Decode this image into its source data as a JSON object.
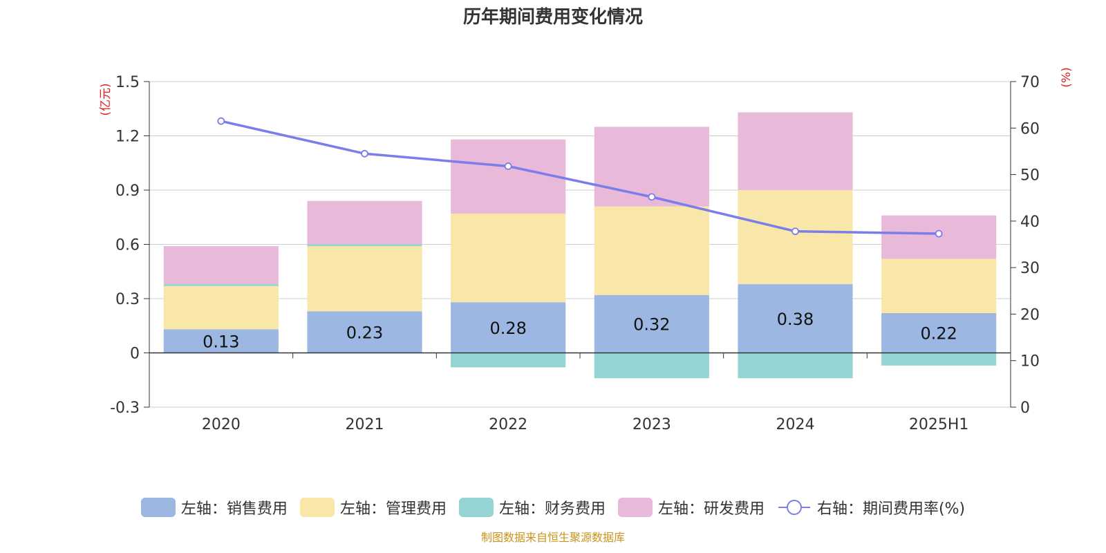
{
  "chart_data": {
    "type": "bar",
    "title": "历年期间费用变化情况",
    "categories": [
      "2020",
      "2021",
      "2022",
      "2023",
      "2024",
      "2025H1"
    ],
    "left_axis": {
      "unit_label": "(亿元)",
      "ylim": [
        -0.3,
        1.5
      ],
      "ticks": [
        "-0.3",
        "0",
        "0.3",
        "0.6",
        "0.9",
        "1.2",
        "1.5"
      ]
    },
    "right_axis": {
      "unit_label": "(%)",
      "ylim": [
        0,
        70
      ],
      "ticks": [
        "0",
        "10",
        "20",
        "30",
        "40",
        "50",
        "60",
        "70"
      ]
    },
    "series": [
      {
        "name": "左轴：销售费用",
        "type": "bar",
        "stack": true,
        "color": "#9bb7e2",
        "values": [
          0.13,
          0.23,
          0.28,
          0.32,
          0.38,
          0.22
        ],
        "labels": [
          "0.13",
          "0.23",
          "0.28",
          "0.32",
          "0.38",
          "0.22"
        ]
      },
      {
        "name": "左轴：管理费用",
        "type": "bar",
        "stack": true,
        "color": "#f8e7a8",
        "values": [
          0.24,
          0.36,
          0.49,
          0.49,
          0.52,
          0.3
        ]
      },
      {
        "name": "左轴：财务费用",
        "type": "bar",
        "stack": true,
        "color": "#96d4d4",
        "values": [
          0.01,
          0.01,
          -0.08,
          -0.14,
          -0.14,
          -0.07
        ]
      },
      {
        "name": "左轴：研发费用",
        "type": "bar",
        "stack": true,
        "color": "#e8b9d9",
        "values": [
          0.21,
          0.24,
          0.41,
          0.44,
          0.43,
          0.24
        ]
      },
      {
        "name": "右轴：期间费用率(%)",
        "type": "line",
        "axis": "right",
        "color": "#7b7de8",
        "values": [
          61.5,
          54.5,
          51.8,
          45.2,
          37.8,
          37.3
        ]
      }
    ],
    "grid": true,
    "legend_position": "bottom"
  },
  "footer": {
    "source": "制图数据来自恒生聚源数据库"
  }
}
